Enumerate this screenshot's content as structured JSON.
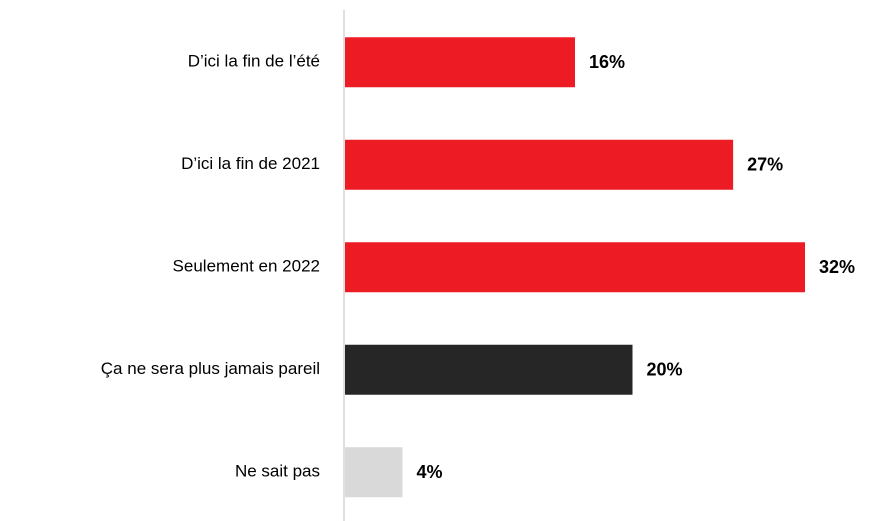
{
  "chart_data": {
    "type": "hbar",
    "categories": [
      "D’ici la fin de l’été",
      "D’ici la fin de 2021",
      "Seulement en 2022",
      "Ça ne sera plus jamais pareil",
      "Ne sait pas"
    ],
    "values": [
      16,
      27,
      32,
      20,
      4
    ],
    "value_labels": [
      "16%",
      "27%",
      "32%",
      "20%",
      "4%"
    ],
    "colors": [
      "#ed1c24",
      "#ed1c24",
      "#ed1c24",
      "#262626",
      "#d9d9d9"
    ]
  }
}
